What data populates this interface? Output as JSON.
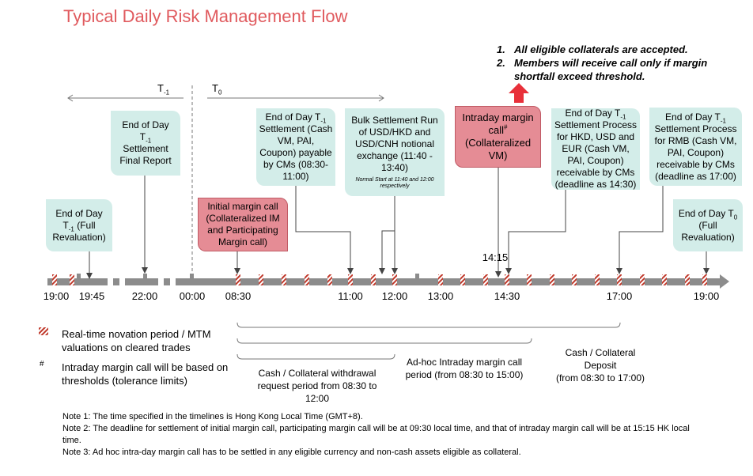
{
  "title": "Typical Daily Risk Management Flow",
  "top_notes": [
    {
      "num": "1.",
      "text": "All eligible collaterals are accepted."
    },
    {
      "num": "2.",
      "text": "Members will receive call only if margin shortfall exceed threshold."
    }
  ],
  "period_labels": {
    "t_minus_1": {
      "base": "T",
      "sub": "-1"
    },
    "t0": {
      "base": "T",
      "sub": "0"
    }
  },
  "boxes": {
    "eod_full_reval": {
      "line1": "End of Day",
      "t_base": "T",
      "t_sub": "-1",
      "rest": "(Full Revaluation)"
    },
    "eod_final_report": {
      "line1": "End of Day",
      "t_base": "T",
      "t_sub": "-1",
      "rest": "Settlement Final Report"
    },
    "initial_margin_call": {
      "text": "Initial margin call (Collateralized IM and Participating Margin call)"
    },
    "eod_settlement_payable": {
      "line1": "End of Day",
      "t_base": "T",
      "t_sub": "-1",
      "rest": "Settlement (Cash VM, PAI, Coupon) payable by CMs (08:30-11:00)"
    },
    "bulk_settlement": {
      "text": "Bulk Settlement Run of USD/HKD and USD/CNH notional exchange (11:40 - 13:40)",
      "small": "Normal Start at 11:40 and 12:00 respectively"
    },
    "intraday_margin_call": {
      "line1": "Intraday margin call",
      "sup": "#",
      "rest": "(Collateralized VM)"
    },
    "eod_hkd_usd_eur": {
      "line1": "End of Day",
      "t_base": "T",
      "t_sub": "-1",
      "rest": "Settlement Process for HKD, USD and EUR (Cash VM, PAI, Coupon) receivable by CMs (deadline as 14:30)"
    },
    "eod_rmb": {
      "line1": "End of Day",
      "t_base": "T",
      "t_sub": "-1",
      "rest": "Settlement Process for RMB (Cash VM, PAI, Coupon) receivable by CMs (deadline as 17:00)"
    },
    "eod_t0_full_reval": {
      "line1": "End of Day",
      "t_base": "T",
      "t_sub": "0",
      "rest": "(Full Revaluation)"
    }
  },
  "timeline_ticks": [
    "19:00",
    "19:45",
    "22:00",
    "00:00",
    "08:30",
    "11:00",
    "12:00",
    "13:00",
    "14:30",
    "17:00",
    "19:00"
  ],
  "marker_1415": "14:15",
  "legend": [
    {
      "symbol": "hatched",
      "text": "Real-time novation period / MTM valuations on cleared trades"
    },
    {
      "symbol": "#",
      "text": "Intraday margin call will be based on thresholds (tolerance limits)"
    }
  ],
  "periods": {
    "withdrawal": "Cash / Collateral withdrawal request period from 08:30 to 12:00",
    "adhoc": "Ad-hoc Intraday margin call period (from 08:30 to 15:00)",
    "deposit_line1": "Cash / Collateral Deposit",
    "deposit_line2": "(from 08:30 to 17:00)"
  },
  "footnotes": [
    "Note 1: The time specified in the timelines is Hong Kong Local Time (GMT+8).",
    "Note 2: The deadline for settlement of initial margin call, participating margin call will be at 09:30 local time, and that of intraday margin call will be at 15:15 HK local time.",
    "Note 3: Ad hoc intra-day margin call has to be settled in any eligible currency and non-cash assets eligible as collateral."
  ],
  "colors": {
    "title": "#e05a5e",
    "hatch_red": "#c0392b",
    "axis_gray": "#8c8c8c",
    "teal_box": "#d3ede9",
    "pink_box": "#e58c95",
    "up_arrow": "#e8303a"
  }
}
